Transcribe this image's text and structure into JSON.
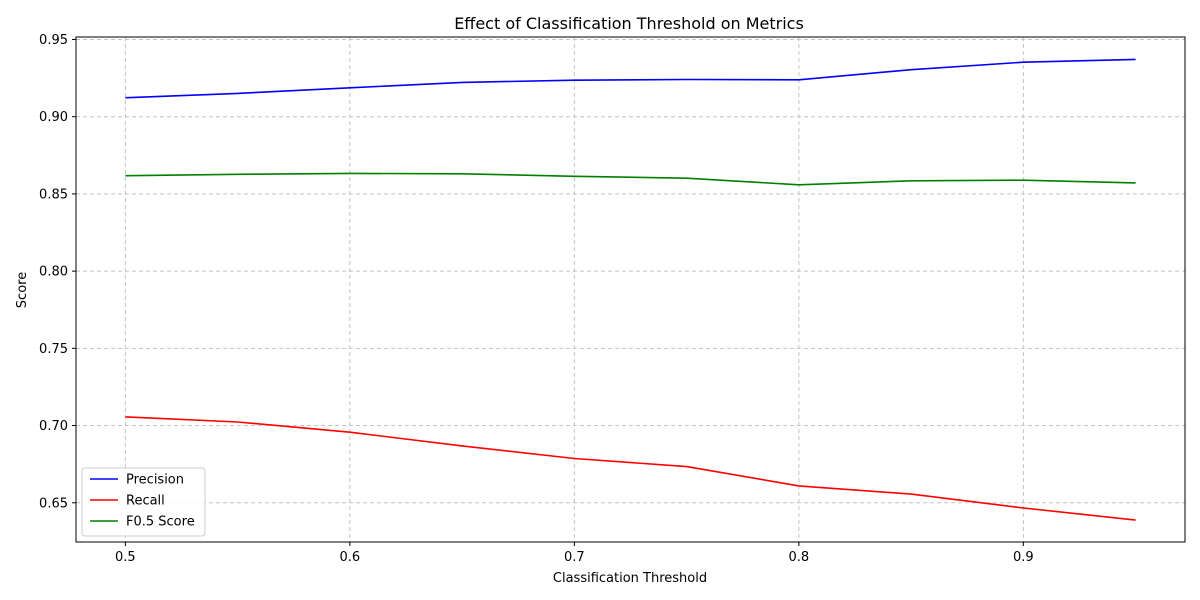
{
  "chart_data": {
    "type": "line",
    "title": "Effect of Classification Threshold on Metrics",
    "xlabel": "Classification Threshold",
    "ylabel": "Score",
    "x": [
      0.5,
      0.55,
      0.6,
      0.65,
      0.7,
      0.75,
      0.8,
      0.85,
      0.9,
      0.95
    ],
    "xlim": [
      0.478,
      0.972
    ],
    "ylim": [
      0.6246,
      0.9516
    ],
    "xticks": [
      0.5,
      0.6,
      0.7,
      0.8,
      0.9
    ],
    "xtick_labels": [
      "0.5",
      "0.6",
      "0.7",
      "0.8",
      "0.9"
    ],
    "yticks": [
      0.65,
      0.7,
      0.75,
      0.8,
      0.85,
      0.9,
      0.95
    ],
    "ytick_labels": [
      "0.65",
      "0.70",
      "0.75",
      "0.80",
      "0.85",
      "0.90",
      "0.95"
    ],
    "grid": true,
    "legend_position": "lower-left",
    "series": [
      {
        "name": "Precision",
        "color": "#0000ff",
        "values": [
          0.9123,
          0.9151,
          0.9187,
          0.9222,
          0.9236,
          0.9241,
          0.9239,
          0.9304,
          0.9353,
          0.9371
        ]
      },
      {
        "name": "Recall",
        "color": "#ff0000",
        "values": [
          0.7056,
          0.7023,
          0.6957,
          0.6868,
          0.6787,
          0.6734,
          0.6609,
          0.6556,
          0.6466,
          0.6388
        ]
      },
      {
        "name": "F0.5 Score",
        "color": "#008000",
        "values": [
          0.8618,
          0.8627,
          0.8633,
          0.863,
          0.8614,
          0.8602,
          0.8559,
          0.8585,
          0.8589,
          0.8571
        ]
      }
    ]
  }
}
